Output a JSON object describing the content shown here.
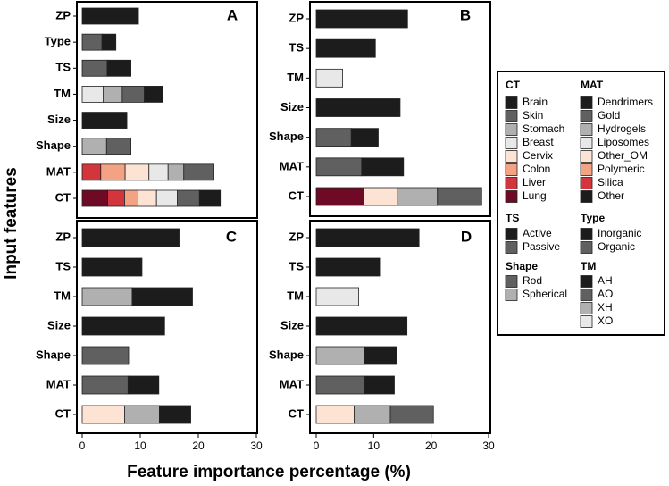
{
  "chart_data": {
    "type": "bar",
    "orientation": "horizontal",
    "stacked": true,
    "xlabel": "Feature importance percentage (%)",
    "ylabel": "Input features",
    "xlim": [
      0,
      30
    ],
    "xticks": [
      "0",
      "10",
      "20",
      "30"
    ],
    "panels": [
      {
        "label": "A",
        "features": [
          "ZP",
          "Type",
          "TS",
          "TM",
          "Size",
          "Shape",
          "MAT",
          "CT"
        ],
        "bars": [
          {
            "feature": "ZP",
            "segments": [
              {
                "group": "ZP",
                "category": "ZP",
                "value": 9.7
              }
            ]
          },
          {
            "feature": "Type",
            "segments": [
              {
                "group": "Type",
                "category": "Organic",
                "value": 3.4
              },
              {
                "group": "Type",
                "category": "Inorganic",
                "value": 2.4
              }
            ]
          },
          {
            "feature": "TS",
            "segments": [
              {
                "group": "TS",
                "category": "Passive",
                "value": 4.3
              },
              {
                "group": "TS",
                "category": "Active",
                "value": 4.1
              }
            ]
          },
          {
            "feature": "TM",
            "segments": [
              {
                "group": "TM",
                "category": "XO",
                "value": 3.6
              },
              {
                "group": "TM",
                "category": "XH",
                "value": 3.3
              },
              {
                "group": "TM",
                "category": "AO",
                "value": 3.8
              },
              {
                "group": "TM",
                "category": "AH",
                "value": 3.2
              }
            ]
          },
          {
            "feature": "Size",
            "segments": [
              {
                "group": "Size",
                "category": "Size",
                "value": 7.7
              }
            ]
          },
          {
            "feature": "Shape",
            "segments": [
              {
                "group": "Shape",
                "category": "Spherical",
                "value": 4.2
              },
              {
                "group": "Shape",
                "category": "Rod",
                "value": 4.2
              }
            ]
          },
          {
            "feature": "MAT",
            "segments": [
              {
                "group": "MAT",
                "category": "Silica",
                "value": 3.2
              },
              {
                "group": "MAT",
                "category": "Polymeric",
                "value": 4.2
              },
              {
                "group": "MAT",
                "category": "Other_OM",
                "value": 4.1
              },
              {
                "group": "MAT",
                "category": "Liposomes",
                "value": 3.3
              },
              {
                "group": "MAT",
                "category": "Hydrogels",
                "value": 2.7
              },
              {
                "group": "MAT",
                "category": "Gold",
                "value": 5.2
              }
            ]
          },
          {
            "feature": "CT",
            "segments": [
              {
                "group": "CT",
                "category": "Lung",
                "value": 4.4
              },
              {
                "group": "CT",
                "category": "Liver",
                "value": 2.9
              },
              {
                "group": "CT",
                "category": "Colon",
                "value": 2.3
              },
              {
                "group": "CT",
                "category": "Cervix",
                "value": 3.2
              },
              {
                "group": "CT",
                "category": "Breast",
                "value": 3.6
              },
              {
                "group": "CT",
                "category": "Skin",
                "value": 3.8
              },
              {
                "group": "CT",
                "category": "Brain",
                "value": 3.6
              }
            ]
          }
        ]
      },
      {
        "label": "B",
        "features": [
          "ZP",
          "TS",
          "TM",
          "Size",
          "Shape",
          "MAT",
          "CT"
        ],
        "bars": [
          {
            "feature": "ZP",
            "segments": [
              {
                "group": "ZP",
                "category": "ZP",
                "value": 15.9
              }
            ]
          },
          {
            "feature": "TS",
            "segments": [
              {
                "group": "TS",
                "category": "Active",
                "value": 10.3
              }
            ]
          },
          {
            "feature": "TM",
            "segments": [
              {
                "group": "TM",
                "category": "XO",
                "value": 4.6
              }
            ]
          },
          {
            "feature": "Size",
            "segments": [
              {
                "group": "Size",
                "category": "Size",
                "value": 14.6
              }
            ]
          },
          {
            "feature": "Shape",
            "segments": [
              {
                "group": "Shape",
                "category": "Rod",
                "value": 6.1
              },
              {
                "group": "Shape",
                "category": "Other",
                "value": 4.7
              }
            ]
          },
          {
            "feature": "MAT",
            "segments": [
              {
                "group": "MAT",
                "category": "Gold",
                "value": 7.9
              },
              {
                "group": "MAT",
                "category": "Other",
                "value": 7.3
              }
            ]
          },
          {
            "feature": "CT",
            "segments": [
              {
                "group": "CT",
                "category": "Lung",
                "value": 8.3
              },
              {
                "group": "CT",
                "category": "Cervix",
                "value": 5.8
              },
              {
                "group": "CT",
                "category": "Stomach",
                "value": 7.0
              },
              {
                "group": "CT",
                "category": "Skin",
                "value": 7.7
              }
            ]
          }
        ]
      },
      {
        "label": "C",
        "features": [
          "ZP",
          "TS",
          "TM",
          "Size",
          "Shape",
          "MAT",
          "CT"
        ],
        "bars": [
          {
            "feature": "ZP",
            "segments": [
              {
                "group": "ZP",
                "category": "ZP",
                "value": 16.7
              }
            ]
          },
          {
            "feature": "TS",
            "segments": [
              {
                "group": "TS",
                "category": "Active",
                "value": 10.3
              }
            ]
          },
          {
            "feature": "TM",
            "segments": [
              {
                "group": "TM",
                "category": "XH",
                "value": 8.6
              },
              {
                "group": "TM",
                "category": "AH",
                "value": 10.4
              }
            ]
          },
          {
            "feature": "Size",
            "segments": [
              {
                "group": "Size",
                "category": "Size",
                "value": 14.2
              }
            ]
          },
          {
            "feature": "Shape",
            "segments": [
              {
                "group": "Shape",
                "category": "Rod",
                "value": 8.0
              }
            ]
          },
          {
            "feature": "MAT",
            "segments": [
              {
                "group": "MAT",
                "category": "Gold",
                "value": 7.9
              },
              {
                "group": "MAT",
                "category": "Other",
                "value": 5.3
              }
            ]
          },
          {
            "feature": "CT",
            "segments": [
              {
                "group": "CT",
                "category": "Cervix",
                "value": 7.3
              },
              {
                "group": "CT",
                "category": "Stomach",
                "value": 6.0
              },
              {
                "group": "CT",
                "category": "Brain",
                "value": 5.4
              }
            ]
          }
        ]
      },
      {
        "label": "D",
        "features": [
          "ZP",
          "TS",
          "TM",
          "Size",
          "Shape",
          "MAT",
          "CT"
        ],
        "bars": [
          {
            "feature": "ZP",
            "segments": [
              {
                "group": "ZP",
                "category": "ZP",
                "value": 17.9
              }
            ]
          },
          {
            "feature": "TS",
            "segments": [
              {
                "group": "TS",
                "category": "Active",
                "value": 11.2
              }
            ]
          },
          {
            "feature": "TM",
            "segments": [
              {
                "group": "TM",
                "category": "XO",
                "value": 7.4
              }
            ]
          },
          {
            "feature": "Size",
            "segments": [
              {
                "group": "Size",
                "category": "Size",
                "value": 15.8
              }
            ]
          },
          {
            "feature": "Shape",
            "segments": [
              {
                "group": "Shape",
                "category": "Spherical",
                "value": 8.4
              },
              {
                "group": "Shape",
                "category": "Other",
                "value": 5.6
              }
            ]
          },
          {
            "feature": "MAT",
            "segments": [
              {
                "group": "MAT",
                "category": "Gold",
                "value": 8.4
              },
              {
                "group": "MAT",
                "category": "Other",
                "value": 5.2
              }
            ]
          },
          {
            "feature": "CT",
            "segments": [
              {
                "group": "CT",
                "category": "Cervix",
                "value": 6.6
              },
              {
                "group": "CT",
                "category": "Stomach",
                "value": 6.3
              },
              {
                "group": "CT",
                "category": "Skin",
                "value": 7.5
              }
            ]
          }
        ]
      }
    ],
    "legend": {
      "placement": "right",
      "groups": [
        {
          "title": "CT",
          "items": [
            "Brain",
            "Skin",
            "Stomach",
            "Breast",
            "Cervix",
            "Colon",
            "Liver",
            "Lung"
          ]
        },
        {
          "title": "MAT",
          "items": [
            "Dendrimers",
            "Gold",
            "Hydrogels",
            "Liposomes",
            "Other_OM",
            "Polymeric",
            "Silica",
            "Other"
          ]
        },
        {
          "title": "TS",
          "items": [
            "Active",
            "Passive"
          ]
        },
        {
          "title": "Type",
          "items": [
            "Inorganic",
            "Organic"
          ]
        },
        {
          "title": "Shape",
          "items": [
            "Rod",
            "Spherical"
          ]
        },
        {
          "title": "TM",
          "items": [
            "AH",
            "AO",
            "XH",
            "XO"
          ]
        }
      ]
    },
    "colors": {
      "CT": {
        "Brain": "#1c1c1c",
        "Skin": "#606060",
        "Stomach": "#b0b0b0",
        "Breast": "#e8e8e8",
        "Cervix": "#fde3d4",
        "Colon": "#f3a283",
        "Liver": "#d3353c",
        "Lung": "#6f0a26"
      },
      "MAT": {
        "Dendrimers": "#1c1c1c",
        "Gold": "#606060",
        "Hydrogels": "#b0b0b0",
        "Liposomes": "#e8e8e8",
        "Other_OM": "#fde3d4",
        "Polymeric": "#f3a283",
        "Silica": "#d3353c",
        "Other": "#1c1c1c"
      },
      "TS": {
        "Active": "#1c1c1c",
        "Passive": "#606060"
      },
      "Type": {
        "Inorganic": "#1c1c1c",
        "Organic": "#606060"
      },
      "Shape": {
        "Rod": "#606060",
        "Spherical": "#b0b0b0",
        "Other": "#1c1c1c"
      },
      "TM": {
        "AH": "#1c1c1c",
        "AO": "#606060",
        "XH": "#b0b0b0",
        "XO": "#e8e8e8"
      },
      "ZP": {
        "ZP": "#1c1c1c"
      },
      "Size": {
        "Size": "#1c1c1c"
      }
    }
  }
}
